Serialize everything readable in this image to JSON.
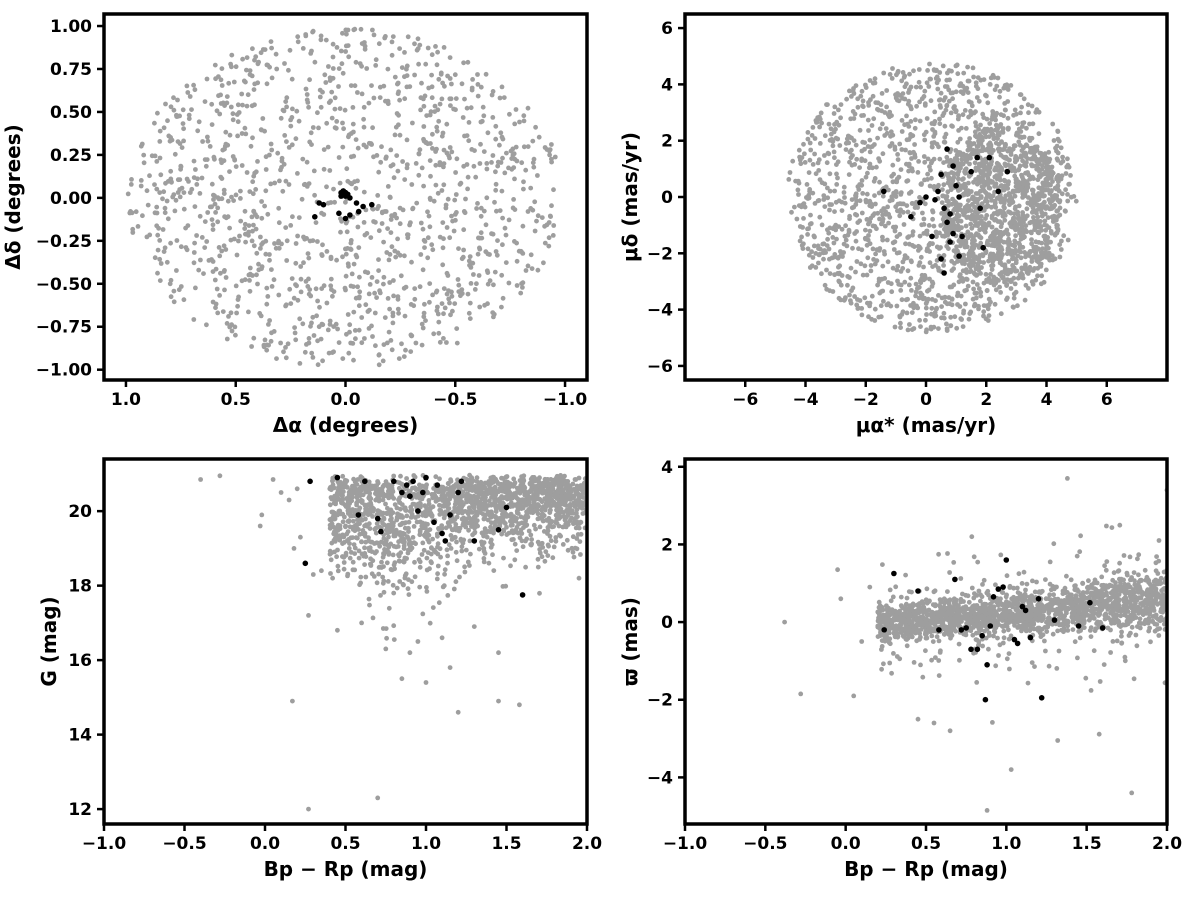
{
  "colors": {
    "field": "#9e9e9e",
    "members": "#000000"
  },
  "chart_data": [
    {
      "id": "positions",
      "type": "scatter",
      "xlabel": "Δα (degrees)",
      "ylabel": "Δδ (degrees)",
      "xlim": [
        1.1,
        -1.1
      ],
      "ylim": [
        -1.06,
        1.07
      ],
      "xticks": [
        1.0,
        0.5,
        0.0,
        -0.5,
        -1.0
      ],
      "xtick_labels": [
        "1.0",
        "0.5",
        "0.0",
        "−0.5",
        "−1.0"
      ],
      "yticks": [
        1.0,
        0.75,
        0.5,
        0.25,
        0.0,
        -0.25,
        -0.5,
        -0.75,
        -1.0
      ],
      "ytick_labels": [
        "1.00",
        "0.75",
        "0.50",
        "0.25",
        "0.00",
        "−0.25",
        "−0.50",
        "−0.75",
        "−1.00"
      ],
      "series": [
        {
          "role": "field",
          "color": "#9e9e9e",
          "generated": {
            "shape": "disk",
            "cx": 0.0,
            "cy": 0.0,
            "rx": 0.99,
            "ry": 0.99,
            "n": 1300
          }
        },
        {
          "role": "members",
          "color": "#000000",
          "x": [
            0.01,
            0.0,
            -0.01,
            0.02,
            0.0,
            -0.02,
            0.01,
            -0.01,
            0.0,
            0.02,
            0.12,
            0.1,
            0.14,
            -0.05,
            -0.08,
            -0.12,
            -0.02,
            0.03,
            0.0,
            -0.06
          ],
          "y": [
            0.04,
            0.03,
            0.02,
            0.01,
            0.03,
            0.0,
            0.04,
            0.02,
            0.01,
            0.03,
            -0.03,
            -0.04,
            -0.11,
            -0.03,
            -0.05,
            -0.04,
            -0.1,
            -0.09,
            -0.12,
            -0.08
          ]
        }
      ]
    },
    {
      "id": "proper-motion",
      "type": "scatter",
      "xlabel": "μα* (mas/yr)",
      "ylabel": "μδ (mas/yr)",
      "xlim": [
        -8,
        8
      ],
      "ylim": [
        -6.5,
        6.5
      ],
      "xticks": [
        -6,
        -4,
        -2,
        0,
        2,
        4,
        6
      ],
      "xtick_labels": [
        "−6",
        "−4",
        "−2",
        "0",
        "2",
        "4",
        "6"
      ],
      "yticks": [
        6,
        4,
        2,
        0,
        -2,
        -4,
        -6
      ],
      "ytick_labels": [
        "6",
        "4",
        "2",
        "0",
        "−2",
        "−4",
        "−6"
      ],
      "series": [
        {
          "role": "field",
          "color": "#9e9e9e",
          "generated": {
            "shape": "disk",
            "cx": 0.2,
            "cy": 0.0,
            "rx": 4.8,
            "ry": 4.8,
            "clip_x": [
              -5,
              5
            ],
            "n": 1500,
            "dense": {
              "cx": 2.5,
              "cy": -0.3,
              "rx": 2.0,
              "ry": 2.8,
              "n": 900
            }
          }
        },
        {
          "role": "members",
          "color": "#000000",
          "x": [
            0.7,
            0.9,
            1.0,
            1.1,
            1.2,
            0.5,
            0.4,
            0.6,
            0.8,
            1.5,
            1.7,
            2.1,
            2.4,
            0.3,
            0.0,
            -0.2,
            -0.5,
            0.5,
            0.8,
            1.1,
            0.9,
            0.6,
            2.7,
            1.9,
            -1.4,
            0.7,
            0.2,
            1.8
          ],
          "y": [
            1.7,
            1.1,
            0.4,
            0.0,
            -1.4,
            0.8,
            0.2,
            -0.4,
            -0.6,
            0.9,
            1.4,
            1.4,
            0.2,
            -0.1,
            0.0,
            -0.2,
            -0.7,
            -2.2,
            -1.6,
            -2.1,
            -1.3,
            -2.7,
            0.9,
            -1.8,
            0.2,
            -0.9,
            -1.4,
            -0.4
          ]
        }
      ]
    },
    {
      "id": "cmd",
      "type": "scatter",
      "xlabel": "Bp − Rp (mag)",
      "ylabel": "G (mag)",
      "xlim": [
        -1.0,
        2.0
      ],
      "ylim": [
        11.6,
        21.4
      ],
      "xticks": [
        -1.0,
        -0.5,
        0.0,
        0.5,
        1.0,
        1.5,
        2.0
      ],
      "xtick_labels": [
        "−1.0",
        "−0.5",
        "0.0",
        "0.5",
        "1.0",
        "1.5",
        "2.0"
      ],
      "yticks": [
        12,
        14,
        16,
        18,
        20
      ],
      "ytick_labels": [
        "12",
        "14",
        "16",
        "18",
        "20"
      ],
      "series": [
        {
          "role": "field",
          "color": "#9e9e9e",
          "x": [
            -0.4,
            -0.28,
            -0.03,
            -0.02,
            0.05,
            0.1,
            0.15,
            0.2,
            0.22,
            0.18,
            0.27,
            0.3,
            0.35,
            0.42,
            0.45,
            0.6,
            0.75,
            0.85,
            0.9,
            0.95,
            1.0,
            1.1,
            1.15,
            1.2,
            1.3,
            1.45,
            1.45,
            1.58,
            1.95,
            0.27,
            0.17,
            0.7
          ],
          "y": [
            20.85,
            20.95,
            19.6,
            19.9,
            20.85,
            20.5,
            20.3,
            20.6,
            19.3,
            19.0,
            17.2,
            18.3,
            18.4,
            18.2,
            16.8,
            17.0,
            16.3,
            15.5,
            16.2,
            16.5,
            15.4,
            16.6,
            15.8,
            14.6,
            16.9,
            16.2,
            14.9,
            14.8,
            18.2,
            12.0,
            14.9,
            12.3
          ],
          "generated": {
            "shape": "band",
            "n": 1800
          }
        },
        {
          "role": "members",
          "color": "#000000",
          "x": [
            0.25,
            0.28,
            0.45,
            0.58,
            0.7,
            0.72,
            0.8,
            0.85,
            0.88,
            0.9,
            0.92,
            0.95,
            0.98,
            1.0,
            1.05,
            1.07,
            1.1,
            1.12,
            1.15,
            1.2,
            1.22,
            1.3,
            1.45,
            1.5,
            1.6,
            0.62,
            0.9
          ],
          "y": [
            18.6,
            20.8,
            20.9,
            19.9,
            19.8,
            19.45,
            20.8,
            20.5,
            20.7,
            20.4,
            20.8,
            20.0,
            20.5,
            20.9,
            19.7,
            20.7,
            19.4,
            19.2,
            19.9,
            20.5,
            20.8,
            19.2,
            19.5,
            20.1,
            17.75,
            20.8,
            20.4
          ]
        }
      ]
    },
    {
      "id": "parallax",
      "type": "scatter",
      "xlabel": "Bp − Rp (mag)",
      "ylabel": "ϖ (mas)",
      "xlim": [
        -1.0,
        2.0
      ],
      "ylim": [
        -5.2,
        4.2
      ],
      "xticks": [
        -1.0,
        -0.5,
        0.0,
        0.5,
        1.0,
        1.5,
        2.0
      ],
      "xtick_labels": [
        "−1.0",
        "−0.5",
        "0.0",
        "0.5",
        "1.0",
        "1.5",
        "2.0"
      ],
      "yticks": [
        4,
        2,
        0,
        -2,
        -4
      ],
      "ytick_labels": [
        "4",
        "2",
        "0",
        "−2",
        "−4"
      ],
      "series": [
        {
          "role": "field",
          "color": "#9e9e9e",
          "x": [
            -0.38,
            -0.28,
            -0.05,
            -0.03,
            0.05,
            0.1,
            0.15,
            0.2,
            0.45,
            0.55,
            0.65,
            1.03,
            1.32,
            1.78,
            1.38,
            0.88,
            1.95,
            2.0
          ],
          "y": [
            0.0,
            -1.85,
            1.35,
            0.6,
            -1.9,
            -0.5,
            0.9,
            -0.1,
            -2.5,
            -2.6,
            -2.8,
            -3.8,
            -3.05,
            -4.4,
            3.7,
            -4.85,
            2.1,
            3.4
          ],
          "generated": {
            "shape": "band",
            "n": 1800
          }
        },
        {
          "role": "members",
          "color": "#000000",
          "x": [
            0.24,
            0.3,
            0.45,
            0.58,
            0.68,
            0.72,
            0.75,
            0.78,
            0.85,
            0.88,
            0.9,
            0.92,
            0.95,
            0.98,
            1.0,
            1.05,
            1.07,
            1.1,
            1.12,
            1.15,
            1.2,
            1.22,
            1.3,
            1.45,
            1.52,
            1.6,
            0.87,
            0.82
          ],
          "y": [
            -0.2,
            1.25,
            0.8,
            -0.2,
            1.1,
            -0.2,
            -0.15,
            -0.7,
            -0.35,
            -1.1,
            -0.1,
            0.65,
            0.85,
            0.9,
            1.6,
            -0.45,
            -0.55,
            0.4,
            0.3,
            -0.4,
            0.6,
            -1.95,
            0.05,
            -0.1,
            0.5,
            -0.15,
            -2.0,
            -0.7
          ]
        }
      ]
    }
  ]
}
